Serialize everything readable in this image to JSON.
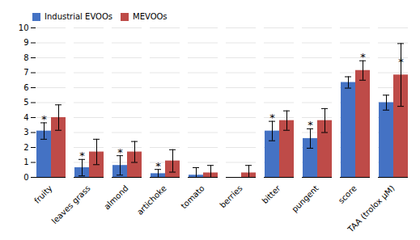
{
  "chart_data": {
    "type": "bar",
    "categories": [
      "fruity",
      "leaves grass",
      "almond",
      "artichoke",
      "tomato",
      "berries",
      "bitter",
      "pungent",
      "score",
      "TAA (trolox μM)"
    ],
    "series": [
      {
        "name": "Industrial EVOOs",
        "color": "#4472C4",
        "values": [
          3.1,
          0.65,
          0.8,
          0.25,
          0.15,
          0.0,
          3.1,
          2.6,
          6.35,
          5.0
        ],
        "errors": [
          0.55,
          0.55,
          0.65,
          0.28,
          0.5,
          0.0,
          0.65,
          0.65,
          0.38,
          0.5
        ]
      },
      {
        "name": "MEVOOs",
        "color": "#BE4B48",
        "values": [
          4.0,
          1.7,
          1.7,
          1.1,
          0.3,
          0.3,
          3.8,
          3.8,
          7.15,
          6.85
        ],
        "errors": [
          0.85,
          0.85,
          0.7,
          0.75,
          0.5,
          0.5,
          0.65,
          0.8,
          0.65,
          2.1
        ]
      }
    ],
    "annotations": [
      {
        "category": "fruity",
        "series": "Industrial EVOOs",
        "y": 3.65,
        "text": "*"
      },
      {
        "category": "leaves grass",
        "series": "Industrial EVOOs",
        "y": 1.2,
        "text": "*"
      },
      {
        "category": "almond",
        "series": "Industrial EVOOs",
        "y": 1.45,
        "text": "*"
      },
      {
        "category": "artichoke",
        "series": "Industrial EVOOs",
        "y": 0.53,
        "text": "*"
      },
      {
        "category": "bitter",
        "series": "Industrial EVOOs",
        "y": 3.75,
        "text": "*"
      },
      {
        "category": "pungent",
        "series": "Industrial EVOOs",
        "y": 3.25,
        "text": "*"
      },
      {
        "category": "score",
        "series": "MEVOOs",
        "y": 7.8,
        "text": "*"
      },
      {
        "category": "TAA (trolox μM)",
        "series": "MEVOOs",
        "y": 7.5,
        "text": "*"
      }
    ],
    "ylim": [
      0,
      10
    ],
    "yticks": [
      0,
      1,
      2,
      3,
      4,
      5,
      6,
      7,
      8,
      9,
      10
    ],
    "grid": true,
    "legend": "upper left"
  }
}
